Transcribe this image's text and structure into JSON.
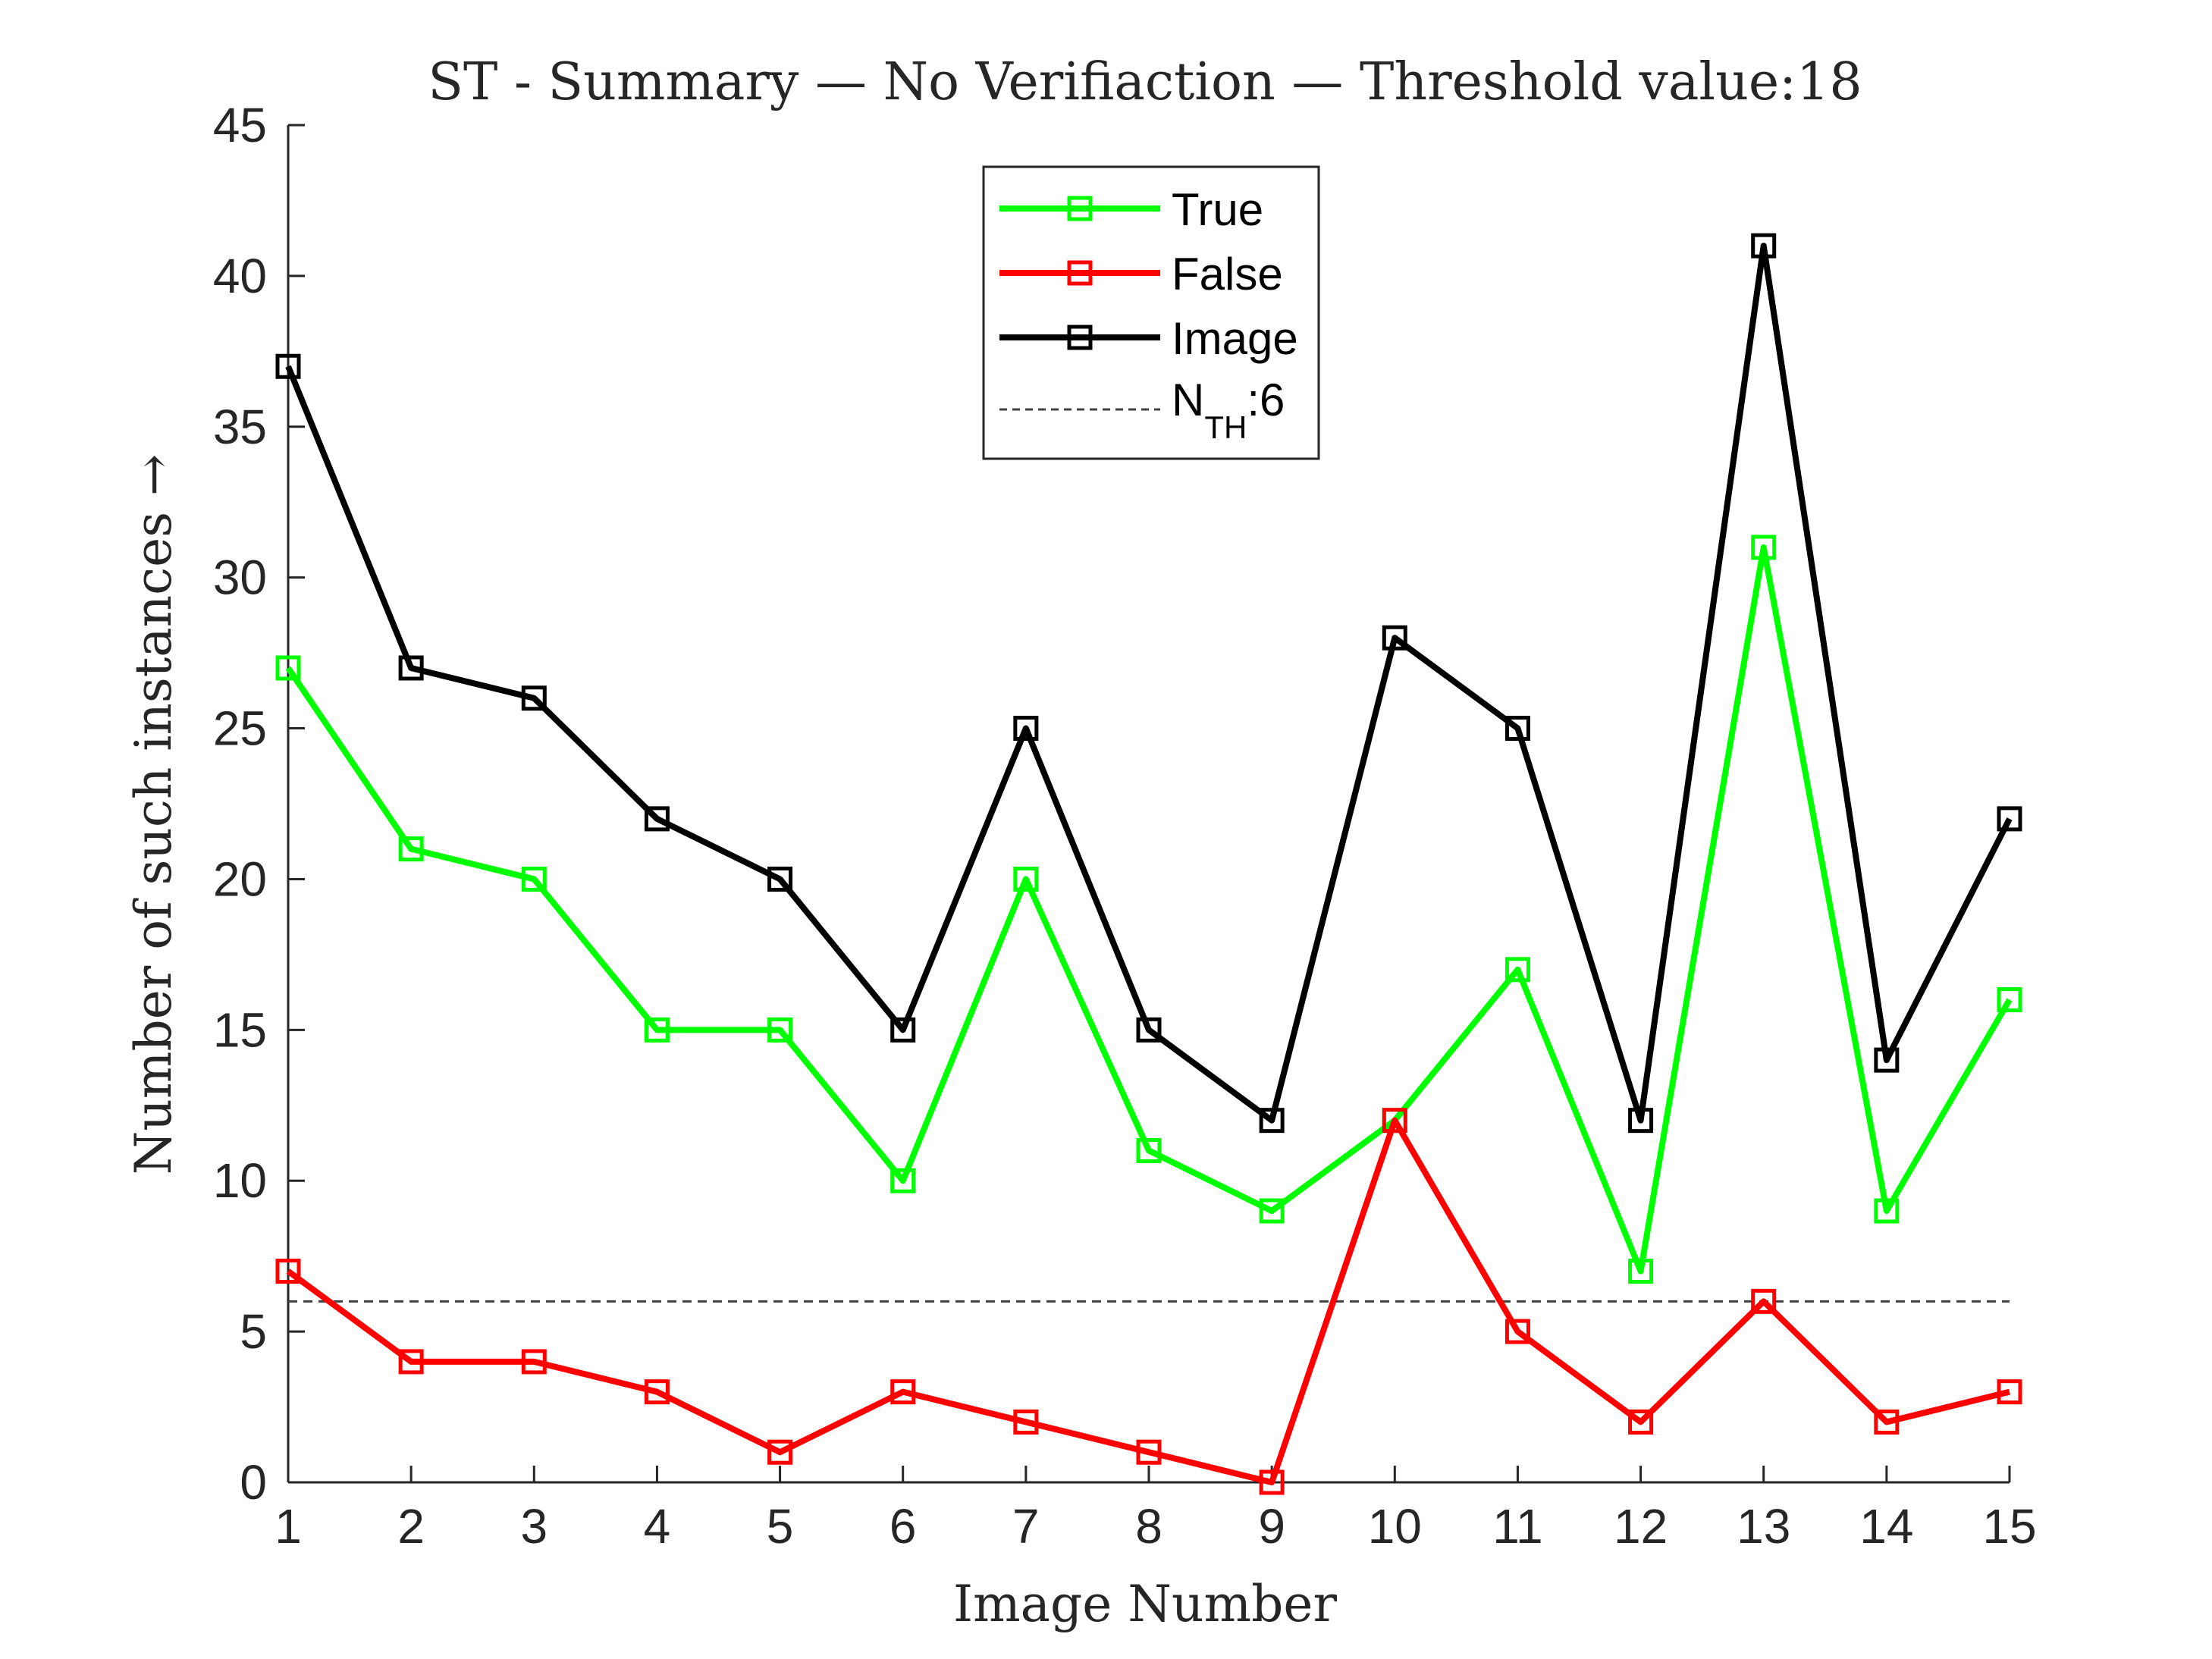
{
  "chart_data": {
    "type": "line",
    "title": "ST - Summary — No Verifiaction — Threshold value:18",
    "xlabel": "Image Number",
    "ylabel": "Number of such instances →",
    "x": [
      1,
      2,
      3,
      4,
      5,
      6,
      7,
      8,
      9,
      10,
      11,
      12,
      13,
      14,
      15
    ],
    "xticks": [
      "1",
      "2",
      "3",
      "4",
      "5",
      "6",
      "7",
      "8",
      "9",
      "10",
      "11",
      "12",
      "13",
      "14",
      "15"
    ],
    "yticks": [
      "0",
      "5",
      "10",
      "15",
      "20",
      "25",
      "30",
      "35",
      "40",
      "45"
    ],
    "xlim": [
      1,
      15
    ],
    "ylim": [
      0,
      45
    ],
    "grid": false,
    "legend_position": "top-center",
    "series": [
      {
        "name": "True",
        "color": "#00ff00",
        "marker": "square",
        "values": [
          27,
          21,
          20,
          15,
          15,
          10,
          20,
          11,
          9,
          12,
          17,
          7,
          31,
          9,
          16
        ]
      },
      {
        "name": "False",
        "color": "#ff0000",
        "marker": "square",
        "values": [
          7,
          4,
          4,
          3,
          1,
          3,
          2,
          1,
          0,
          12,
          5,
          2,
          6,
          2,
          3
        ]
      },
      {
        "name": "Image",
        "color": "#000000",
        "marker": "square",
        "values": [
          37,
          27,
          26,
          22,
          20,
          15,
          25,
          15,
          12,
          28,
          25,
          12,
          41,
          14,
          22
        ]
      }
    ],
    "threshold": {
      "name_main": "N",
      "name_sub": "TH",
      "name_suffix": ":6",
      "value": 6,
      "color": "#404040",
      "style": "dashed"
    }
  }
}
